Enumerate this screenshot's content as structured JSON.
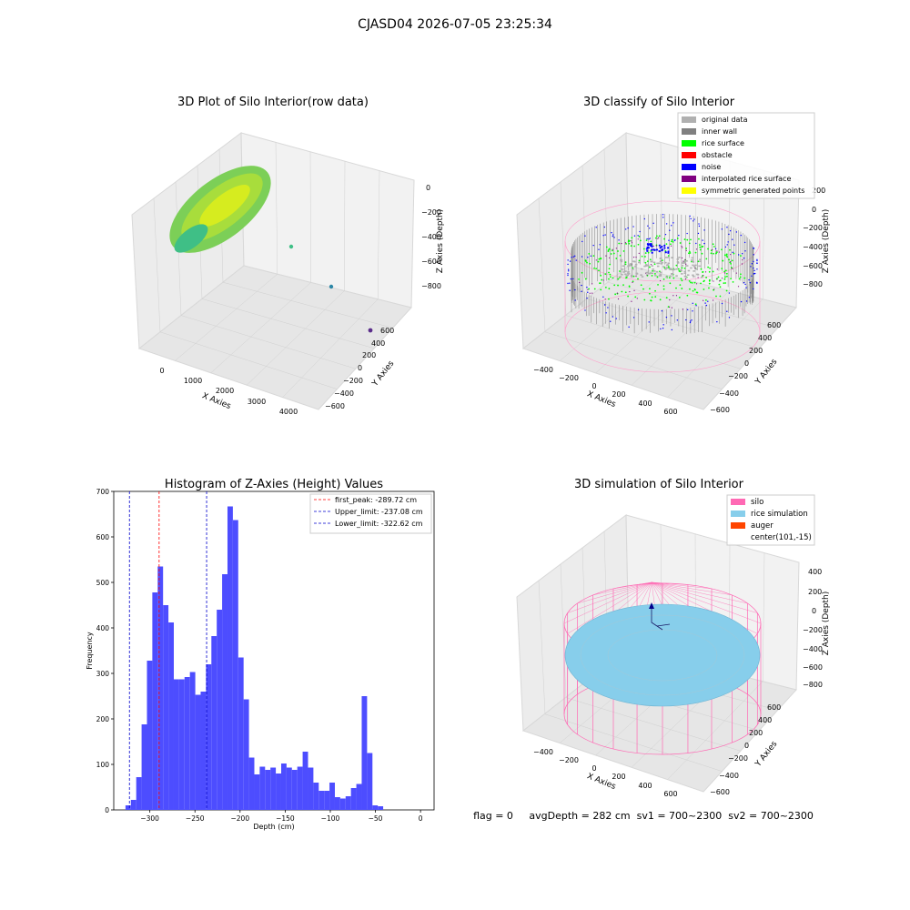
{
  "figure": {
    "suptitle": "CJASD04 2026-07-05 23:25:34",
    "footer": "flag = 0     avgDepth = 282 cm  sv1 = 700~2300  sv2 = 700~2300"
  },
  "colors": {
    "hist_bar": "#4d4dff",
    "first_peak_line": "#ff0000",
    "limit_line": "#0000cc",
    "silo": "#ff69b4",
    "rice_sim": "#87ceeb",
    "auger": "#ff4500",
    "original": "#b0b0b0",
    "inner_wall": "#808080",
    "rice_surface": "#00ff00",
    "obstacle": "#ff0000",
    "noise": "#0000ff",
    "interp": "#800080",
    "symmetric": "#ffff00"
  },
  "panel1": {
    "title": "3D Plot of Silo Interior(row data)",
    "xlabel": "X Axies",
    "ylabel": "Y Axies",
    "zlabel": "Z Axies (Depth)",
    "xticks": [
      "0",
      "1000",
      "2000",
      "3000",
      "4000"
    ],
    "yticks": [
      "600",
      "400",
      "200",
      "0",
      "−200",
      "−400",
      "−600"
    ],
    "zticks": [
      "0",
      "−200",
      "−400",
      "−600",
      "−800"
    ]
  },
  "panel2": {
    "title": "3D classify of Silo Interior",
    "xlabel": "X Axies",
    "ylabel": "Y Axies",
    "zlabel": "Z Axies (Depth)",
    "xticks": [
      "−400",
      "−200",
      "0",
      "200",
      "400",
      "600"
    ],
    "yticks": [
      "600",
      "400",
      "200",
      "0",
      "−200",
      "−400",
      "−600"
    ],
    "zticks": [
      "200",
      "0",
      "−200",
      "−400",
      "−600",
      "−800"
    ],
    "legend": [
      {
        "label": "original data",
        "color": "#b0b0b0"
      },
      {
        "label": "inner wall",
        "color": "#808080"
      },
      {
        "label": "rice surface",
        "color": "#00ff00"
      },
      {
        "label": "obstacle",
        "color": "#ff0000"
      },
      {
        "label": "noise",
        "color": "#0000ff"
      },
      {
        "label": "interpolated rice surface",
        "color": "#800080"
      },
      {
        "label": "symmetric generated points",
        "color": "#ffff00"
      }
    ]
  },
  "panel4": {
    "title": "3D simulation of Silo Interior",
    "xlabel": "X Axies",
    "ylabel": "Y Axies",
    "zlabel": "Z Axies (Depth)",
    "xticks": [
      "−400",
      "−200",
      "0",
      "200",
      "400",
      "600"
    ],
    "yticks": [
      "600",
      "400",
      "200",
      "0",
      "−200",
      "−400",
      "−600"
    ],
    "zticks": [
      "400",
      "200",
      "0",
      "−200",
      "−400",
      "−600",
      "−800"
    ],
    "legend": [
      {
        "label": "silo",
        "color": "#ff69b4"
      },
      {
        "label": "rice simulation",
        "color": "#87ceeb"
      },
      {
        "label": "auger",
        "color": "#ff4500"
      },
      {
        "label": "center(101,-15)",
        "color": ""
      }
    ]
  },
  "chart_data": [
    {
      "type": "bar",
      "title": "Histogram of Z-Axies (Height) Values",
      "xlabel": "Depth (cm)",
      "ylabel": "Frequency",
      "xlim": [
        -340,
        15
      ],
      "ylim": [
        0,
        700
      ],
      "xticks": [
        -300,
        -250,
        -200,
        -150,
        -100,
        -50,
        0
      ],
      "yticks": [
        0,
        100,
        200,
        300,
        400,
        500,
        600,
        700
      ],
      "bin_start": -327,
      "bin_width": 5.95,
      "values": [
        10,
        22,
        72,
        188,
        328,
        478,
        535,
        450,
        412,
        287,
        287,
        292,
        303,
        253,
        260,
        320,
        382,
        440,
        518,
        667,
        637,
        335,
        243,
        115,
        78,
        95,
        88,
        93,
        80,
        102,
        93,
        88,
        95,
        128,
        93,
        60,
        42,
        42,
        60,
        28,
        25,
        30,
        48,
        57,
        250,
        125,
        10,
        8
      ],
      "lines": [
        {
          "label": "first_peak: -289.72 cm",
          "x": -289.72,
          "color": "#ff0000"
        },
        {
          "label": "Upper_limit: -237.08 cm",
          "x": -237.08,
          "color": "#0000cc"
        },
        {
          "label": "Lower_limit: -322.62 cm",
          "x": -322.62,
          "color": "#0000cc"
        }
      ],
      "legend_position": "top-right"
    }
  ]
}
